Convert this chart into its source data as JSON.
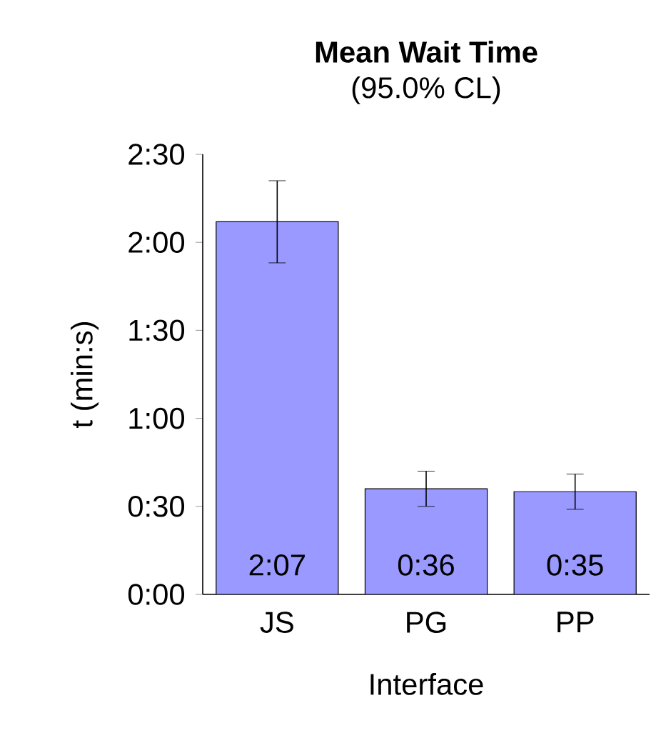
{
  "chart_data": {
    "type": "bar",
    "title": "Mean Wait Time",
    "subtitle": "(95.0% CL)",
    "xlabel": "Interface",
    "ylabel": "t (min:s)",
    "categories": [
      "JS",
      "PG",
      "PP"
    ],
    "values": [
      127,
      36,
      35
    ],
    "value_labels": [
      "2:07",
      "0:36",
      "0:35"
    ],
    "errors": [
      14,
      6,
      6
    ],
    "color": "#9999ff",
    "ylim": [
      0,
      150
    ],
    "yticks": [
      {
        "value": 0,
        "label": "0:00"
      },
      {
        "value": 30,
        "label": "0:30"
      },
      {
        "value": 60,
        "label": "1:00"
      },
      {
        "value": 90,
        "label": "1:30"
      },
      {
        "value": 120,
        "label": "2:00"
      },
      {
        "value": 150,
        "label": "2:30"
      }
    ],
    "grid": false
  }
}
